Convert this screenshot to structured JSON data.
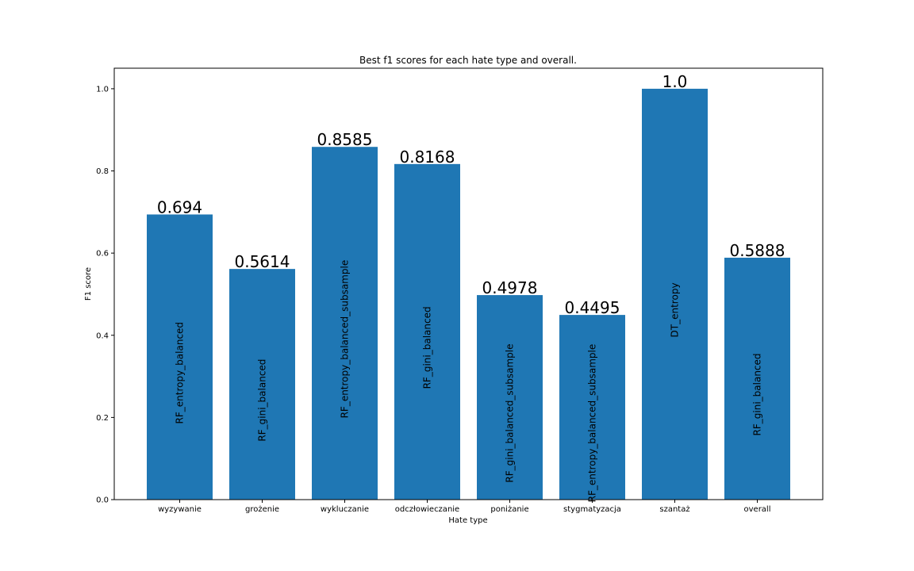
{
  "chart_data": {
    "type": "bar",
    "title": "Best f1 scores for each hate type and overall.",
    "xlabel": "Hate type",
    "ylabel": "F1 score",
    "ylim": [
      0,
      1.05
    ],
    "yticks": [
      "0.0",
      "0.2",
      "0.4",
      "0.6",
      "0.8",
      "1.0"
    ],
    "grid": false,
    "bar_color": "#1f77b4",
    "categories": [
      "wyzywanie",
      "grożenie",
      "wykluczanie",
      "odczłowieczanie",
      "poniżanie",
      "stygmatyzacja",
      "szantaż",
      "overall"
    ],
    "values": [
      0.694,
      0.5614,
      0.8585,
      0.8168,
      0.4978,
      0.4495,
      1.0,
      0.5888
    ],
    "value_labels": [
      "0.694",
      "0.5614",
      "0.8585",
      "0.8168",
      "0.4978",
      "0.4495",
      "1.0",
      "0.5888"
    ],
    "bar_annotations": [
      "RF_entropy_balanced",
      "RF_gini_balanced",
      "RF_entropy_balanced_subsample",
      "RF_gini_balanced",
      "RF_gini_balanced_subsample",
      "RF_entropy_balanced_subsample",
      "DT_entropy",
      "RF_gini_balanced"
    ]
  }
}
